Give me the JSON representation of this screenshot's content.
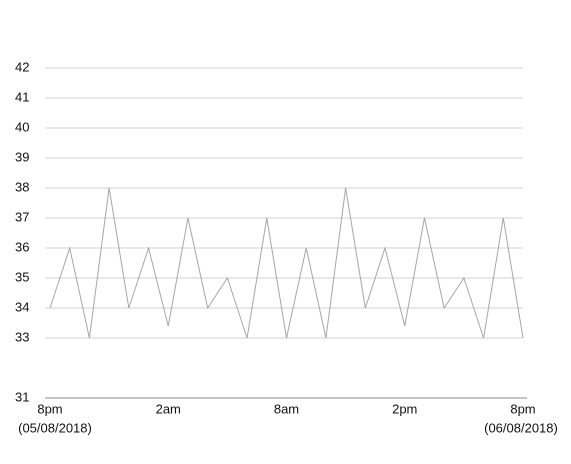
{
  "chart_data": {
    "type": "line",
    "categories": [
      "8pm",
      null,
      null,
      null,
      null,
      null,
      "2am",
      null,
      null,
      null,
      null,
      null,
      "8am",
      null,
      null,
      null,
      null,
      null,
      "2pm",
      null,
      null,
      null,
      null,
      null,
      "8pm"
    ],
    "x_sublabels": [
      "(05/08/2018)",
      "(06/08/2018)"
    ],
    "series": [
      {
        "color": "#a6a6a6",
        "values": [
          34,
          36,
          33,
          38,
          34,
          36,
          33.4,
          37,
          34,
          35,
          33,
          37,
          33,
          36,
          33,
          38,
          34,
          36,
          33.4,
          37,
          34,
          35,
          33,
          37,
          33
        ]
      }
    ],
    "ylim": [
      31,
      42
    ],
    "yticks": [
      31,
      33,
      34,
      35,
      36,
      37,
      38,
      39,
      40,
      41,
      42
    ],
    "grid": true
  }
}
